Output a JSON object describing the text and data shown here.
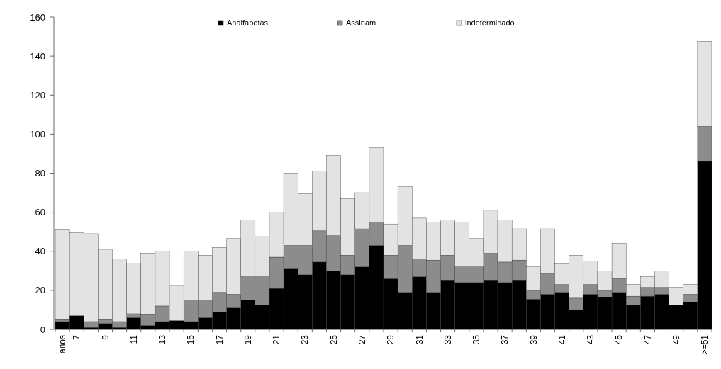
{
  "chart_data": {
    "type": "bar",
    "stacked": true,
    "legend": "top",
    "grid": false,
    "categories": [
      "anos",
      "7",
      null,
      "9",
      null,
      "11",
      null,
      "13",
      null,
      "15",
      null,
      "17",
      null,
      "19",
      null,
      "21",
      null,
      "23",
      null,
      "25",
      null,
      "27",
      null,
      "29",
      null,
      "31",
      null,
      "33",
      null,
      "35",
      null,
      "37",
      null,
      "39",
      null,
      "41",
      null,
      "43",
      null,
      "45",
      null,
      "47",
      null,
      "49",
      null,
      ">=51"
    ],
    "ylim": [
      0,
      160
    ],
    "yticks": [
      0,
      20,
      40,
      60,
      80,
      100,
      120,
      140,
      160
    ],
    "series": [
      {
        "name": "Analfabetas",
        "color": "#000000",
        "values": [
          4,
          7,
          1,
          3,
          1,
          6,
          2,
          4,
          4.5,
          4,
          6,
          9,
          11,
          15,
          12.5,
          21,
          31,
          28,
          34.5,
          30,
          28,
          32,
          43,
          26,
          19,
          27,
          19,
          25,
          24,
          24,
          25,
          24,
          25,
          15.5,
          18,
          19,
          10,
          18,
          16.5,
          19,
          12.5,
          17,
          18,
          12.5,
          14,
          86
        ]
      },
      {
        "name": "Assinam",
        "color": "#8c8c8c",
        "values": [
          1,
          null,
          3,
          2,
          3,
          2,
          5.5,
          8,
          null,
          11,
          9,
          10,
          7,
          12,
          14.5,
          16,
          12,
          15,
          16,
          18,
          10,
          19.5,
          12,
          12,
          24,
          9,
          16.5,
          13,
          8,
          8,
          14,
          10.5,
          10.5,
          4.5,
          10.5,
          4,
          6,
          5,
          3.5,
          7,
          4.5,
          4.5,
          3.5,
          0,
          4,
          18
        ]
      },
      {
        "name": "indeterminado",
        "color": "#e3e3e3",
        "values": [
          46,
          42.5,
          45,
          36,
          32,
          26,
          31.5,
          28,
          18,
          25,
          23,
          23,
          28.5,
          29,
          20.5,
          23,
          37,
          26.5,
          30.5,
          41,
          29,
          18.5,
          38,
          16,
          30,
          21,
          19.5,
          18,
          23,
          14.5,
          22,
          21.5,
          16,
          12,
          23,
          10.5,
          22,
          12,
          10,
          18,
          6,
          5.5,
          8.5,
          9,
          5,
          43.5
        ]
      }
    ]
  }
}
